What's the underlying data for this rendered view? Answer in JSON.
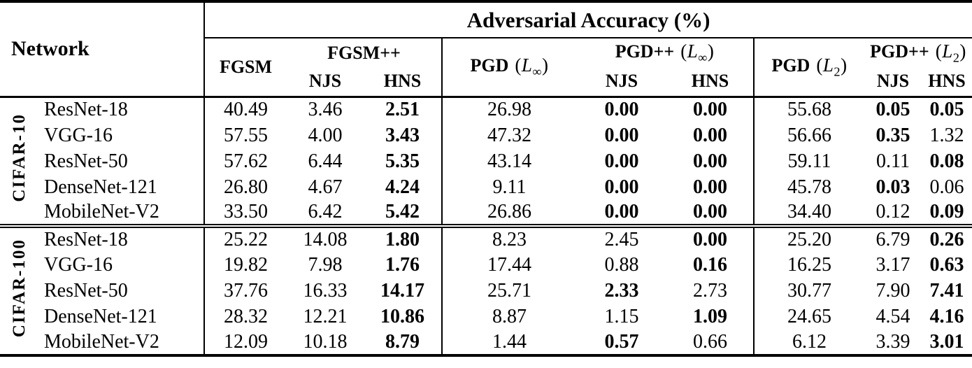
{
  "table": {
    "title": "Adversarial Accuracy (%)",
    "network_header": "Network",
    "subcolumns": {
      "njs": "NJS",
      "hns": "HNS"
    },
    "groups": [
      {
        "label": "FGSM"
      },
      {
        "label": "FGSM++"
      },
      {
        "label": "PGD",
        "math_open": "(",
        "math_letter": "L",
        "math_sub": "∞",
        "math_close": ")"
      },
      {
        "label": "PGD++",
        "math_open": "(",
        "math_letter": "L",
        "math_sub": "∞",
        "math_close": ")"
      },
      {
        "label": "PGD",
        "math_open": "(",
        "math_letter": "L",
        "math_sub": "2",
        "math_close": ")"
      },
      {
        "label": "PGD++",
        "math_open": "(",
        "math_letter": "L",
        "math_sub": "2",
        "math_close": ")"
      }
    ],
    "sections": [
      {
        "label": "CIFAR-10",
        "rows": [
          {
            "network": "ResNet-18",
            "values": [
              {
                "v": "40.49",
                "bold": false
              },
              {
                "v": "3.46",
                "bold": false
              },
              {
                "v": "2.51",
                "bold": true
              },
              {
                "v": "26.98",
                "bold": false
              },
              {
                "v": "0.00",
                "bold": true
              },
              {
                "v": "0.00",
                "bold": true
              },
              {
                "v": "55.68",
                "bold": false
              },
              {
                "v": "0.05",
                "bold": true
              },
              {
                "v": "0.05",
                "bold": true
              }
            ]
          },
          {
            "network": "VGG-16",
            "values": [
              {
                "v": "57.55",
                "bold": false
              },
              {
                "v": "4.00",
                "bold": false
              },
              {
                "v": "3.43",
                "bold": true
              },
              {
                "v": "47.32",
                "bold": false
              },
              {
                "v": "0.00",
                "bold": true
              },
              {
                "v": "0.00",
                "bold": true
              },
              {
                "v": "56.66",
                "bold": false
              },
              {
                "v": "0.35",
                "bold": true
              },
              {
                "v": "1.32",
                "bold": false
              }
            ]
          },
          {
            "network": "ResNet-50",
            "values": [
              {
                "v": "57.62",
                "bold": false
              },
              {
                "v": "6.44",
                "bold": false
              },
              {
                "v": "5.35",
                "bold": true
              },
              {
                "v": "43.14",
                "bold": false
              },
              {
                "v": "0.00",
                "bold": true
              },
              {
                "v": "0.00",
                "bold": true
              },
              {
                "v": "59.11",
                "bold": false
              },
              {
                "v": "0.11",
                "bold": false
              },
              {
                "v": "0.08",
                "bold": true
              }
            ]
          },
          {
            "network": "DenseNet-121",
            "values": [
              {
                "v": "26.80",
                "bold": false
              },
              {
                "v": "4.67",
                "bold": false
              },
              {
                "v": "4.24",
                "bold": true
              },
              {
                "v": "9.11",
                "bold": false
              },
              {
                "v": "0.00",
                "bold": true
              },
              {
                "v": "0.00",
                "bold": true
              },
              {
                "v": "45.78",
                "bold": false
              },
              {
                "v": "0.03",
                "bold": true
              },
              {
                "v": "0.06",
                "bold": false
              }
            ]
          },
          {
            "network": "MobileNet-V2",
            "values": [
              {
                "v": "33.50",
                "bold": false
              },
              {
                "v": "6.42",
                "bold": false
              },
              {
                "v": "5.42",
                "bold": true
              },
              {
                "v": "26.86",
                "bold": false
              },
              {
                "v": "0.00",
                "bold": true
              },
              {
                "v": "0.00",
                "bold": true
              },
              {
                "v": "34.40",
                "bold": false
              },
              {
                "v": "0.12",
                "bold": false
              },
              {
                "v": "0.09",
                "bold": true
              }
            ]
          }
        ]
      },
      {
        "label": "CIFAR-100",
        "rows": [
          {
            "network": "ResNet-18",
            "values": [
              {
                "v": "25.22",
                "bold": false
              },
              {
                "v": "14.08",
                "bold": false
              },
              {
                "v": "1.80",
                "bold": true
              },
              {
                "v": "8.23",
                "bold": false
              },
              {
                "v": "2.45",
                "bold": false
              },
              {
                "v": "0.00",
                "bold": true
              },
              {
                "v": "25.20",
                "bold": false
              },
              {
                "v": "6.79",
                "bold": false
              },
              {
                "v": "0.26",
                "bold": true
              }
            ]
          },
          {
            "network": "VGG-16",
            "values": [
              {
                "v": "19.82",
                "bold": false
              },
              {
                "v": "7.98",
                "bold": false
              },
              {
                "v": "1.76",
                "bold": true
              },
              {
                "v": "17.44",
                "bold": false
              },
              {
                "v": "0.88",
                "bold": false
              },
              {
                "v": "0.16",
                "bold": true
              },
              {
                "v": "16.25",
                "bold": false
              },
              {
                "v": "3.17",
                "bold": false
              },
              {
                "v": "0.63",
                "bold": true
              }
            ]
          },
          {
            "network": "ResNet-50",
            "values": [
              {
                "v": "37.76",
                "bold": false
              },
              {
                "v": "16.33",
                "bold": false
              },
              {
                "v": "14.17",
                "bold": true
              },
              {
                "v": "25.71",
                "bold": false
              },
              {
                "v": "2.33",
                "bold": true
              },
              {
                "v": "2.73",
                "bold": false
              },
              {
                "v": "30.77",
                "bold": false
              },
              {
                "v": "7.90",
                "bold": false
              },
              {
                "v": "7.41",
                "bold": true
              }
            ]
          },
          {
            "network": "DenseNet-121",
            "values": [
              {
                "v": "28.32",
                "bold": false
              },
              {
                "v": "12.21",
                "bold": false
              },
              {
                "v": "10.86",
                "bold": true
              },
              {
                "v": "8.87",
                "bold": false
              },
              {
                "v": "1.15",
                "bold": false
              },
              {
                "v": "1.09",
                "bold": true
              },
              {
                "v": "24.65",
                "bold": false
              },
              {
                "v": "4.54",
                "bold": false
              },
              {
                "v": "4.16",
                "bold": true
              }
            ]
          },
          {
            "network": "MobileNet-V2",
            "values": [
              {
                "v": "12.09",
                "bold": false
              },
              {
                "v": "10.18",
                "bold": false
              },
              {
                "v": "8.79",
                "bold": true
              },
              {
                "v": "1.44",
                "bold": false
              },
              {
                "v": "0.57",
                "bold": true
              },
              {
                "v": "0.66",
                "bold": false
              },
              {
                "v": "6.12",
                "bold": false
              },
              {
                "v": "3.39",
                "bold": false
              },
              {
                "v": "3.01",
                "bold": true
              }
            ]
          }
        ]
      }
    ]
  }
}
